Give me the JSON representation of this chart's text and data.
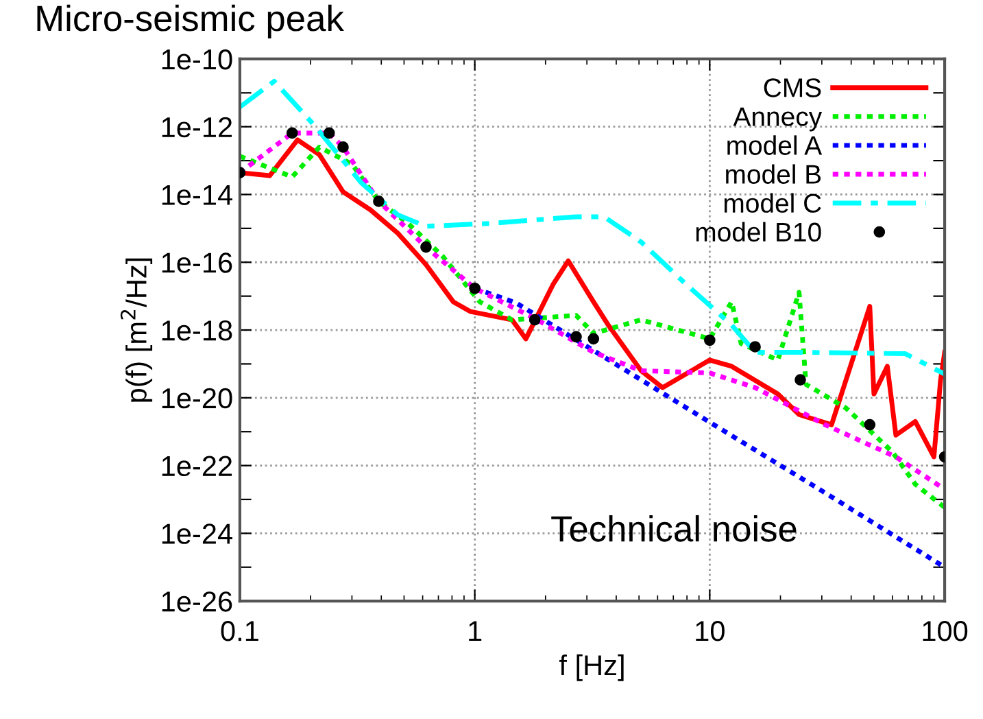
{
  "chart_data": {
    "type": "line",
    "xlabel": "f [Hz]",
    "ylabel": "p(f) [m$^{2}$/Hz]",
    "log": "xy",
    "grid": true,
    "legend": "top right",
    "xlim": [
      0.1,
      100
    ],
    "xticks": [
      0.1,
      1,
      10,
      100
    ],
    "ylim": [
      1e-26,
      1e-10
    ],
    "yticks": [
      {
        "value": 1e-10,
        "label": "1e-10"
      },
      {
        "value": 1e-11,
        "label": null
      },
      {
        "value": 1e-12,
        "label": "1e-12"
      },
      {
        "value": 1e-13,
        "label": null
      },
      {
        "value": 1e-14,
        "label": "1e-14"
      },
      {
        "value": 1e-15,
        "label": null
      },
      {
        "value": 1e-16,
        "label": "1e-16"
      },
      {
        "value": 1e-17,
        "label": null
      },
      {
        "value": 1e-18,
        "label": "1e-18"
      },
      {
        "value": 1e-19,
        "label": null
      },
      {
        "value": 1e-20,
        "label": "1e-20"
      },
      {
        "value": 1e-21,
        "label": null
      },
      {
        "value": 1e-22,
        "label": "1e-22"
      },
      {
        "value": 1e-23,
        "label": null
      },
      {
        "value": 1e-24,
        "label": "1e-24"
      },
      {
        "value": 1e-25,
        "label": null
      },
      {
        "value": 1e-26,
        "label": "1e-26"
      }
    ],
    "annotations": [
      "Micro-seismic peak",
      "Technical noise"
    ],
    "series": [
      {
        "name": "CMS",
        "color": "#ff0000",
        "line_style": "solid",
        "x": [
          0.1,
          0.134,
          0.176,
          0.218,
          0.275,
          0.36,
          0.47,
          0.62,
          0.81,
          0.96,
          1.44,
          1.65,
          2.16,
          2.5,
          3.2,
          3.7,
          5.1,
          6.3,
          10,
          12.4,
          19.5,
          24,
          33,
          48,
          50,
          57,
          62,
          75,
          90,
          96,
          100
        ],
        "values": [
          4.4e-14,
          3.6e-14,
          4.1e-13,
          1.5e-13,
          1.2e-14,
          3.5e-15,
          7.2e-16,
          8.5e-17,
          6.8e-18,
          3.5e-18,
          2e-18,
          5.5e-19,
          2.3e-17,
          1.1e-16,
          6.8e-18,
          1.4e-18,
          6.3e-20,
          2e-20,
          1.3e-19,
          8.5e-20,
          1.3e-20,
          3.2e-21,
          1.6e-21,
          5e-18,
          1.3e-20,
          8.5e-20,
          7.9e-22,
          2e-21,
          1.8e-22,
          3.2e-20,
          2.2e-19
        ]
      },
      {
        "name": "Annecy",
        "color": "#00ee00",
        "line_style": "dotted",
        "x": [
          0.1,
          0.167,
          0.218,
          0.3,
          0.39,
          0.52,
          0.73,
          1.05,
          1.44,
          2.7,
          3.2,
          5.1,
          10,
          12.4,
          13.6,
          19.5,
          24,
          25.7,
          38,
          60,
          75,
          100
        ],
        "values": [
          1.35e-13,
          3.3e-14,
          2.5e-13,
          7.9e-14,
          6.3e-15,
          1.4e-15,
          1.5e-16,
          6.8e-18,
          2e-18,
          2.7e-18,
          7.9e-19,
          2e-18,
          5.5e-19,
          6.8e-18,
          4e-19,
          1.3e-19,
          1.3e-17,
          2.5e-20,
          5e-21,
          2.5e-22,
          2.8e-23,
          5.8e-24
        ]
      },
      {
        "name": "model A",
        "color": "#0000ff",
        "line_style": "dotted",
        "x": [
          1,
          1.5,
          2.07,
          5,
          10,
          30,
          100
        ],
        "values": [
          1.7e-17,
          6.3e-18,
          1.6e-18,
          3.7e-20,
          1.9e-21,
          1.8e-23,
          1e-25
        ]
      },
      {
        "name": "model B",
        "color": "#ff00ff",
        "line_style": "dotted",
        "x": [
          0.1,
          0.167,
          0.24,
          0.275,
          0.39,
          0.62,
          1,
          1.8,
          3.2,
          5.1,
          10,
          15.6,
          31,
          62,
          100
        ],
        "values": [
          4.4e-14,
          6.5e-13,
          6.5e-13,
          2.5e-13,
          6.3e-15,
          2.8e-16,
          1.7e-17,
          2.2e-18,
          2.2e-19,
          6.3e-20,
          5.4e-20,
          2e-20,
          1.6e-21,
          1.8e-22,
          2e-23
        ]
      },
      {
        "name": "model C",
        "color": "#00ffff",
        "line_style": "dashed",
        "x": [
          0.1,
          0.14,
          0.21,
          0.327,
          0.47,
          0.62,
          1.16,
          2.7,
          3.55,
          5.1,
          7.9,
          12.4,
          15.6,
          24,
          68,
          100
        ],
        "values": [
          3.8e-12,
          2.2e-11,
          1e-12,
          2.3e-14,
          2.5e-15,
          1.15e-15,
          1.4e-15,
          2.2e-15,
          2.2e-15,
          4e-16,
          2.3e-17,
          1.4e-18,
          2.2e-19,
          2.2e-19,
          2e-19,
          5e-20
        ]
      },
      {
        "name": "model B10",
        "color": "#000000",
        "type": "scatter",
        "marker": "circle",
        "x": [
          0.1,
          0.167,
          0.24,
          0.275,
          0.39,
          0.62,
          1,
          1.8,
          2.7,
          3.2,
          10,
          15.6,
          24.3,
          48,
          100
        ],
        "values": [
          4.4e-14,
          6.5e-13,
          6.5e-13,
          2.5e-13,
          6.3e-15,
          2.8e-16,
          1.7e-17,
          2e-18,
          6.3e-19,
          5.5e-19,
          5e-19,
          3.2e-19,
          3.4e-20,
          1.6e-21,
          1.8e-22
        ]
      }
    ]
  }
}
